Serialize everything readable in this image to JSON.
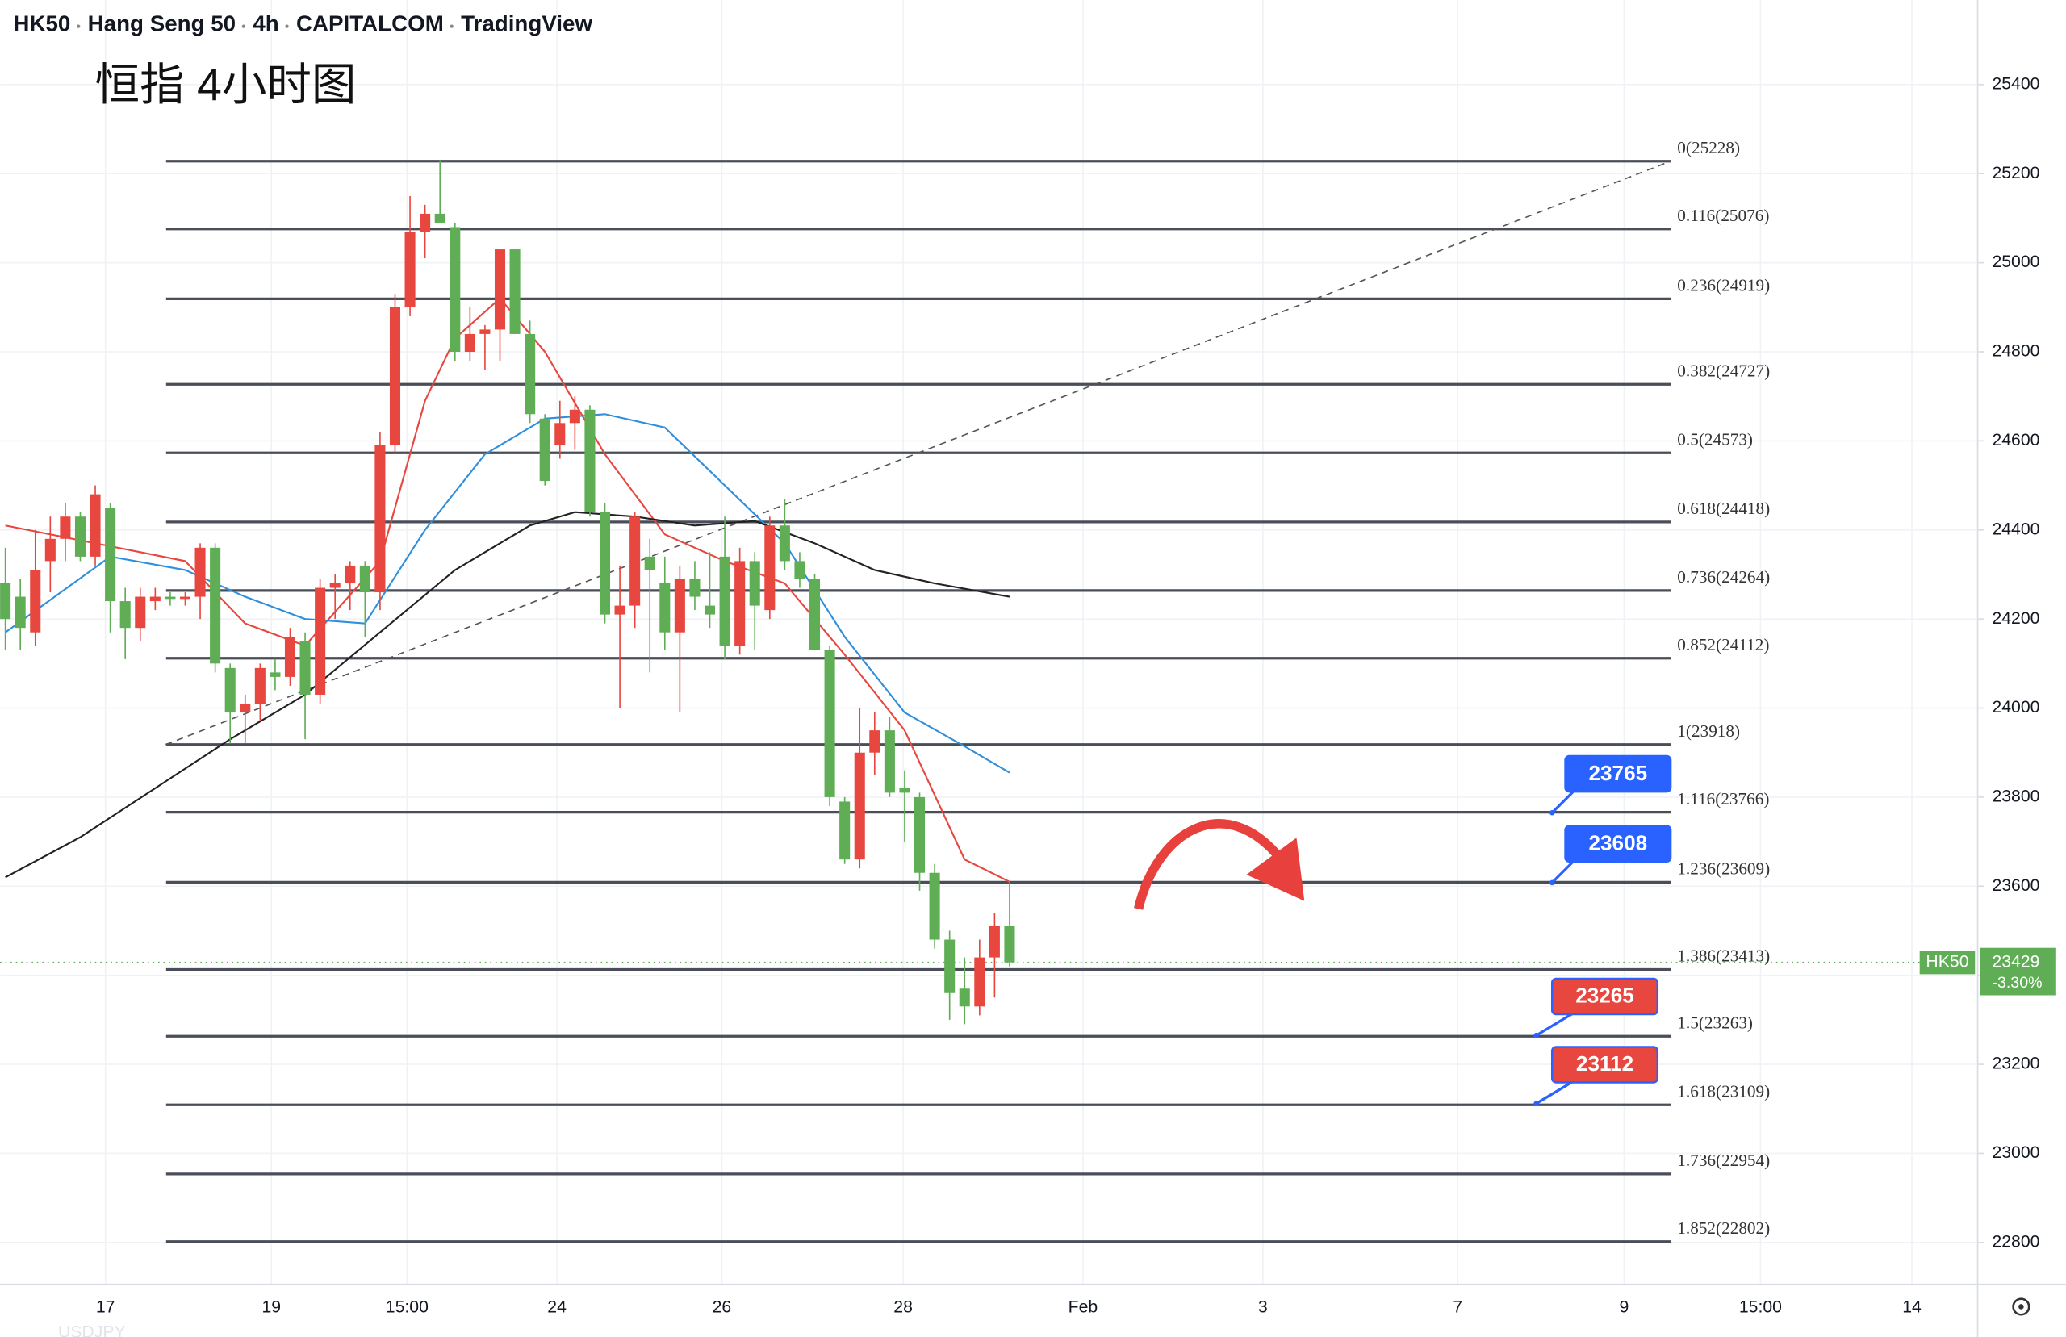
{
  "chart_data": {
    "type": "candlestick",
    "header": [
      "HK50",
      "Hang Seng 50",
      "4h",
      "CAPITALCOM",
      "TradingView"
    ],
    "annotation": "恒指 4小时图",
    "footer_symbol": "USDJPY",
    "up_color": "#e8473f",
    "down_color": "#5fae55",
    "open": [
      24280,
      24250,
      24170,
      24330,
      24380,
      24430,
      24340,
      24450,
      24240,
      24180,
      24240,
      24250,
      24245,
      24250,
      24360,
      24090,
      23990,
      24010,
      24080,
      24070,
      24150,
      24030,
      24270,
      24280,
      24320,
      24260,
      24590,
      24900,
      25070,
      25110,
      25080,
      24800,
      24840,
      24850,
      25030,
      24840,
      24650,
      24590,
      24640,
      24670,
      24440,
      24210,
      24230,
      24340,
      24280,
      24170,
      24290,
      24230,
      24340,
      24140,
      24330,
      24220,
      24410,
      24330,
      24290,
      24130,
      23790,
      23660,
      23900,
      23950,
      23820,
      23800,
      23630,
      23480,
      23370,
      23330,
      23440,
      23510
    ],
    "high": [
      24360,
      24290,
      24400,
      24430,
      24460,
      24440,
      24500,
      24460,
      24270,
      24270,
      24270,
      24260,
      24260,
      24370,
      24370,
      24100,
      24030,
      24100,
      24110,
      24180,
      24170,
      24290,
      24300,
      24330,
      24330,
      24620,
      24930,
      25150,
      25130,
      25230,
      25090,
      24900,
      24860,
      25030,
      25030,
      24870,
      24660,
      24690,
      24700,
      24680,
      24460,
      24320,
      24440,
      24380,
      24340,
      24320,
      24330,
      24350,
      24430,
      24360,
      24350,
      24430,
      24470,
      24350,
      24300,
      24140,
      23800,
      24000,
      23990,
      23980,
      23860,
      23810,
      23650,
      23500,
      23440,
      23480,
      23540,
      23610
    ],
    "low": [
      24130,
      24130,
      24140,
      24260,
      24330,
      24330,
      24320,
      24170,
      24110,
      24150,
      24220,
      24230,
      24230,
      24200,
      24080,
      23920,
      23920,
      23970,
      24040,
      24050,
      23930,
      24010,
      24200,
      24220,
      24160,
      24220,
      24570,
      24880,
      25010,
      25090,
      24780,
      24780,
      24760,
      24780,
      24840,
      24640,
      24500,
      24560,
      24580,
      24430,
      24190,
      24000,
      24180,
      24080,
      24130,
      23990,
      24220,
      24180,
      24110,
      24120,
      24130,
      24200,
      24310,
      24270,
      24140,
      23780,
      23650,
      23640,
      23850,
      23800,
      23700,
      23590,
      23460,
      23300,
      23290,
      23310,
      23350,
      23420
    ],
    "close": [
      24200,
      24180,
      24310,
      24380,
      24430,
      24340,
      24480,
      24240,
      24180,
      24250,
      24250,
      24245,
      24250,
      24360,
      24100,
      23990,
      24010,
      24090,
      24070,
      24160,
      24030,
      24270,
      24280,
      24320,
      24260,
      24590,
      24900,
      25070,
      25110,
      25090,
      24800,
      24840,
      24850,
      25030,
      24840,
      24660,
      24510,
      24640,
      24670,
      24440,
      24210,
      24230,
      24430,
      24310,
      24170,
      24290,
      24250,
      24210,
      24140,
      24330,
      24230,
      24410,
      24330,
      24290,
      24130,
      23800,
      23660,
      23900,
      23950,
      23810,
      23810,
      23630,
      23480,
      23360,
      23330,
      23440,
      23510,
      23429
    ],
    "indicators": [
      {
        "color": "#e8473f",
        "x": [
          0,
          6,
          12,
          16,
          20,
          25,
          28,
          30,
          33,
          36,
          40,
          44,
          48,
          52,
          56,
          60,
          64,
          67
        ],
        "values": [
          24410,
          24370,
          24330,
          24190,
          24140,
          24330,
          24690,
          24830,
          24920,
          24800,
          24570,
          24390,
          24330,
          24280,
          24120,
          23950,
          23660,
          23610
        ]
      },
      {
        "color": "#2f8fdc",
        "x": [
          0,
          7,
          12,
          16,
          20,
          24,
          28,
          32,
          36,
          40,
          44,
          48,
          52,
          56,
          60,
          64,
          67
        ],
        "values": [
          24170,
          24340,
          24310,
          24250,
          24200,
          24190,
          24400,
          24570,
          24650,
          24660,
          24630,
          24500,
          24370,
          24160,
          23990,
          23914,
          23855
        ]
      },
      {
        "color": "#222222",
        "x": [
          0,
          5,
          10,
          15,
          20,
          25,
          30,
          35,
          38,
          42,
          46,
          50,
          54,
          58,
          62,
          67
        ],
        "values": [
          23620,
          23710,
          23820,
          23930,
          24030,
          24170,
          24310,
          24410,
          24440,
          24430,
          24410,
          24420,
          24370,
          24310,
          24280,
          24250
        ]
      }
    ],
    "fib_levels": [
      {
        "value": 25228,
        "label": "0(25228)"
      },
      {
        "value": 25076,
        "label": "0.116(25076)"
      },
      {
        "value": 24919,
        "label": "0.236(24919)"
      },
      {
        "value": 24727,
        "label": "0.382(24727)"
      },
      {
        "value": 24573,
        "label": "0.5(24573)"
      },
      {
        "value": 24418,
        "label": "0.618(24418)"
      },
      {
        "value": 24264,
        "label": "0.736(24264)"
      },
      {
        "value": 24112,
        "label": "0.852(24112)"
      },
      {
        "value": 23918,
        "label": "1(23918)"
      },
      {
        "value": 23766,
        "label": "1.116(23766)"
      },
      {
        "value": 23609,
        "label": "1.236(23609)"
      },
      {
        "value": 23413,
        "label": "1.386(23413)"
      },
      {
        "value": 23263,
        "label": "1.5(23263)"
      },
      {
        "value": 23109,
        "label": "1.618(23109)"
      },
      {
        "value": 22954,
        "label": "1.736(22954)"
      },
      {
        "value": 22802,
        "label": "1.852(22802)"
      }
    ],
    "trendline": {
      "x": [
        10.7,
        111.1
      ],
      "values": [
        23918,
        25228
      ]
    },
    "callouts": [
      {
        "value": 23765,
        "color": "#2962ff"
      },
      {
        "value": 23608,
        "color": "#2962ff"
      },
      {
        "value": 23265,
        "color": "#e8473f"
      },
      {
        "value": 23112,
        "color": "#e8473f"
      }
    ],
    "last_price": {
      "symbol": "HK50",
      "value": 23429,
      "change": {
        "value": -3.3,
        "label": "-3.30%"
      },
      "color": "#5fae55"
    },
    "ylim": [
      22706,
      25590
    ],
    "yticks": [
      22800,
      23000,
      23200,
      23400,
      23600,
      23800,
      24000,
      24200,
      24400,
      24600,
      24800,
      25000,
      25200,
      25400
    ],
    "xlim": [
      -0.35,
      131.5
    ],
    "xticks": [
      {
        "value": 6.68,
        "label": "17"
      },
      {
        "value": 17.75,
        "label": "19"
      },
      {
        "value": 26.8,
        "label": "15:00"
      },
      {
        "value": 36.8,
        "label": "24"
      },
      {
        "value": 47.8,
        "label": "26"
      },
      {
        "value": 59.9,
        "label": "28"
      },
      {
        "value": 71.9,
        "label": "Feb"
      },
      {
        "value": 83.9,
        "label": "3"
      },
      {
        "value": 96.9,
        "label": "7"
      },
      {
        "value": 108.0,
        "label": "9"
      },
      {
        "value": 117.1,
        "label": "15:00"
      },
      {
        "value": 127.2,
        "label": "14"
      }
    ],
    "grid": true
  }
}
